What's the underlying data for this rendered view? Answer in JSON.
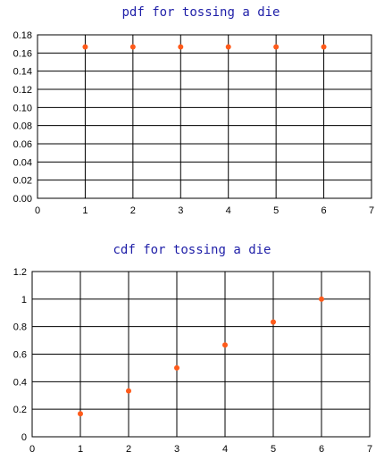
{
  "chart_data": [
    {
      "type": "scatter",
      "title": "pdf for tossing a die",
      "xlabel": "",
      "ylabel": "",
      "xlim": [
        0,
        7
      ],
      "ylim": [
        0,
        0.18
      ],
      "x_ticks": [
        0,
        1,
        2,
        3,
        4,
        5,
        6,
        7
      ],
      "y_ticks": [
        0,
        0.02,
        0.04,
        0.06,
        0.08,
        0.1,
        0.12,
        0.14,
        0.16,
        0.18
      ],
      "y_tick_labels": [
        "0.00",
        "0.02",
        "0.04",
        "0.06",
        "0.08",
        "0.10",
        "0.12",
        "0.14",
        "0.16",
        "0.18"
      ],
      "grid": true,
      "x": [
        1,
        2,
        3,
        4,
        5,
        6
      ],
      "y": [
        0.1667,
        0.1667,
        0.1667,
        0.1667,
        0.1667,
        0.1667
      ],
      "marker_color": "#ff5a1a"
    },
    {
      "type": "scatter",
      "title": "cdf for tossing a die",
      "xlabel": "",
      "ylabel": "",
      "xlim": [
        0,
        7
      ],
      "ylim": [
        0,
        1.2
      ],
      "x_ticks": [
        0,
        1,
        2,
        3,
        4,
        5,
        6,
        7
      ],
      "y_ticks": [
        0,
        0.2,
        0.4,
        0.6,
        0.8,
        1,
        1.2
      ],
      "y_tick_labels": [
        "0",
        "0.2",
        "0.4",
        "0.6",
        "0.8",
        "1",
        "1.2"
      ],
      "grid": true,
      "x": [
        1,
        2,
        3,
        4,
        5,
        6
      ],
      "y": [
        0.1667,
        0.3333,
        0.5,
        0.6667,
        0.8333,
        1.0
      ],
      "marker_color": "#ff5a1a"
    }
  ]
}
